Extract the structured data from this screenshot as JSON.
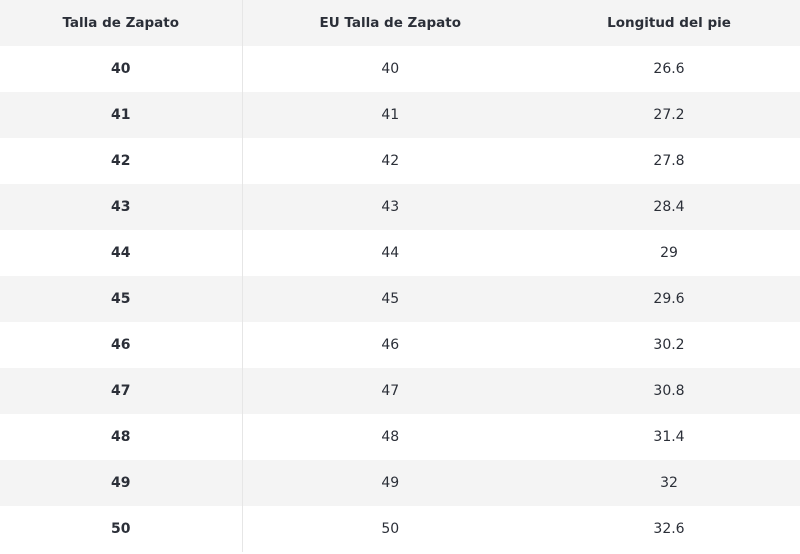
{
  "table": {
    "header": [
      "Talla de Zapato",
      "EU Talla de Zapato",
      "Longitud del pie"
    ],
    "rows": [
      [
        40,
        40,
        26.6
      ],
      [
        41,
        41,
        27.2
      ],
      [
        42,
        42,
        27.8
      ],
      [
        43,
        43,
        28.4
      ],
      [
        44,
        44,
        29
      ],
      [
        45,
        45,
        29.6
      ],
      [
        46,
        46,
        30.2
      ],
      [
        47,
        47,
        30.8
      ],
      [
        48,
        48,
        31.4
      ],
      [
        49,
        49,
        32
      ],
      [
        50,
        50,
        32.6
      ]
    ]
  }
}
